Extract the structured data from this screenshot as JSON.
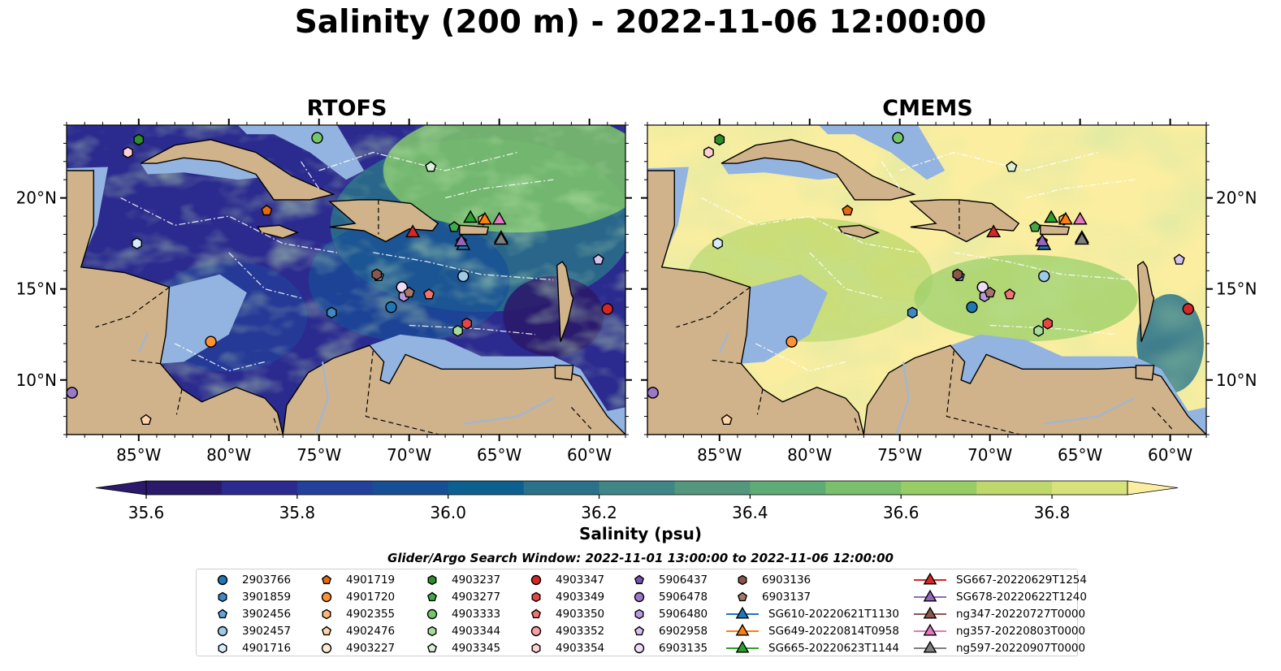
{
  "title": "Salinity (200 m) - 2022-11-06 12:00:00",
  "chart_data": {
    "type": "heatmap",
    "panels": [
      {
        "title": "RTOFS",
        "mean_salinity_bias": "low"
      },
      {
        "title": "CMEMS",
        "mean_salinity_bias": "high"
      }
    ],
    "x_ticks": [
      "85°W",
      "80°W",
      "75°W",
      "70°W",
      "65°W",
      "60°W"
    ],
    "x_tick_values": [
      -85,
      -80,
      -75,
      -70,
      -65,
      -60
    ],
    "y_ticks": [
      "20°N",
      "15°N",
      "10°N"
    ],
    "y_tick_values": [
      20,
      15,
      10
    ],
    "xlim": [
      -89,
      -58
    ],
    "ylim": [
      7,
      24
    ],
    "colorbar": {
      "label": "Salinity (psu)",
      "ticks": [
        "35.6",
        "35.8",
        "36.0",
        "36.2",
        "36.4",
        "36.6",
        "36.8"
      ],
      "tick_values": [
        35.6,
        35.8,
        36.0,
        36.2,
        36.4,
        36.6,
        36.8
      ],
      "range": [
        35.55,
        36.95
      ],
      "extend": "both",
      "colors": [
        "#2b1a6b",
        "#2b2a8f",
        "#23409a",
        "#174f97",
        "#0c6090",
        "#2a718a",
        "#3e8786",
        "#52977e",
        "#5fab76",
        "#7abf6c",
        "#98cd66",
        "#bfd86c",
        "#d8e27b",
        "#fbeea0"
      ]
    },
    "legend_title": "Glider/Argo Search Window: 2022-11-01 13:00:00 to 2022-11-06 12:00:00",
    "platforms": [
      {
        "name": "2903766",
        "marker": "circle",
        "color": "#1f77b4",
        "lon": -71.0,
        "lat": 14.0
      },
      {
        "name": "3901859",
        "marker": "hexagon",
        "color": "#3f88c5",
        "lon": -74.3,
        "lat": 13.7
      },
      {
        "name": "3902456",
        "marker": "pentagon",
        "color": "#5fa4dd",
        "lon": -71.7,
        "lat": 15.7
      },
      {
        "name": "3902457",
        "marker": "circle",
        "color": "#9ccae8",
        "lon": -67.0,
        "lat": 15.7
      },
      {
        "name": "4901716",
        "marker": "hexagon",
        "color": "#d6ecf8",
        "lon": -85.1,
        "lat": 17.5
      },
      {
        "name": "4901719",
        "marker": "pentagon",
        "color": "#e8690b",
        "lon": -77.9,
        "lat": 19.3
      },
      {
        "name": "4901720",
        "marker": "circle",
        "color": "#fd9232",
        "lon": -81.0,
        "lat": 12.1
      },
      {
        "name": "4902355",
        "marker": "hexagon",
        "color": "#fdb87b",
        "lon": -65.9,
        "lat": 18.8
      },
      {
        "name": "4902476",
        "marker": "pentagon",
        "color": "#fdd4a8",
        "lon": -84.6,
        "lat": 7.8
      },
      {
        "name": "4903227",
        "marker": "circle",
        "color": "#fee9d3",
        "lon": -70.4,
        "lat": 15.1
      },
      {
        "name": "4903237",
        "marker": "hexagon",
        "color": "#2b8d2b",
        "lon": -85.0,
        "lat": 23.2
      },
      {
        "name": "4903277",
        "marker": "pentagon",
        "color": "#43a848",
        "lon": -67.5,
        "lat": 18.4
      },
      {
        "name": "4903333",
        "marker": "circle",
        "color": "#73c76b",
        "lon": -75.1,
        "lat": 23.3
      },
      {
        "name": "4903344",
        "marker": "hexagon",
        "color": "#a5dc9c",
        "lon": -67.3,
        "lat": 12.7
      },
      {
        "name": "4903345",
        "marker": "pentagon",
        "color": "#d8f3d3",
        "lon": -68.8,
        "lat": 21.7
      },
      {
        "name": "4903347",
        "marker": "circle",
        "color": "#d62728",
        "lon": -59.0,
        "lat": 13.9
      },
      {
        "name": "4903349",
        "marker": "hexagon",
        "color": "#e64545",
        "lon": -66.8,
        "lat": 13.1
      },
      {
        "name": "4903350",
        "marker": "pentagon",
        "color": "#f47272",
        "lon": -68.9,
        "lat": 14.7
      },
      {
        "name": "4903352",
        "marker": "circle",
        "color": "#f9a1a1",
        "lon": -88.7,
        "lat": 9.3
      },
      {
        "name": "4903354",
        "marker": "hexagon",
        "color": "#fdd1d1",
        "lon": -85.6,
        "lat": 22.5
      },
      {
        "name": "5906437",
        "marker": "pentagon",
        "color": "#7852b0",
        "lon": -67.1,
        "lat": 17.6
      },
      {
        "name": "5906478",
        "marker": "circle",
        "color": "#9c79c8",
        "lon": -88.7,
        "lat": 9.3
      },
      {
        "name": "5906480",
        "marker": "hexagon",
        "color": "#b79bdb",
        "lon": -70.3,
        "lat": 14.6
      },
      {
        "name": "6902958",
        "marker": "pentagon",
        "color": "#d5c2f0",
        "lon": -59.5,
        "lat": 16.6
      },
      {
        "name": "6903135",
        "marker": "circle",
        "color": "#ecdcfa",
        "lon": -70.4,
        "lat": 15.1
      },
      {
        "name": "6903136",
        "marker": "hexagon",
        "color": "#8c564b",
        "lon": -71.8,
        "lat": 15.8
      },
      {
        "name": "6903137",
        "marker": "pentagon",
        "color": "#a8776c",
        "lon": -70.0,
        "lat": 14.8
      },
      {
        "name": "SG610-20220621T1130",
        "marker": "triangle",
        "line": true,
        "color": "#1f77b4",
        "lon": -67.0,
        "lat": 17.4
      },
      {
        "name": "SG649-20220814T0958",
        "marker": "triangle",
        "line": true,
        "color": "#ff7f0e",
        "lon": -65.8,
        "lat": 18.8
      },
      {
        "name": "SG665-20220623T1144",
        "marker": "triangle",
        "line": true,
        "color": "#2ca02c",
        "lon": -66.6,
        "lat": 18.9
      },
      {
        "name": "SG667-20220629T1254",
        "marker": "triangle",
        "line": true,
        "color": "#d62728",
        "lon": -69.8,
        "lat": 18.1
      },
      {
        "name": "SG678-20220622T1240",
        "marker": "triangle",
        "line": true,
        "color": "#9467bd",
        "lon": -67.1,
        "lat": 17.6
      },
      {
        "name": "ng347-20220727T0000",
        "marker": "triangle",
        "line": true,
        "color": "#8c564b",
        "lon": -64.9,
        "lat": 17.8
      },
      {
        "name": "ng357-20220803T0000",
        "marker": "triangle",
        "line": true,
        "color": "#e377c2",
        "lon": -65.0,
        "lat": 18.8
      },
      {
        "name": "ng597-20220907T0000",
        "marker": "triangle",
        "line": true,
        "color": "#7f7f7f",
        "lon": -64.9,
        "lat": 17.7
      }
    ]
  }
}
